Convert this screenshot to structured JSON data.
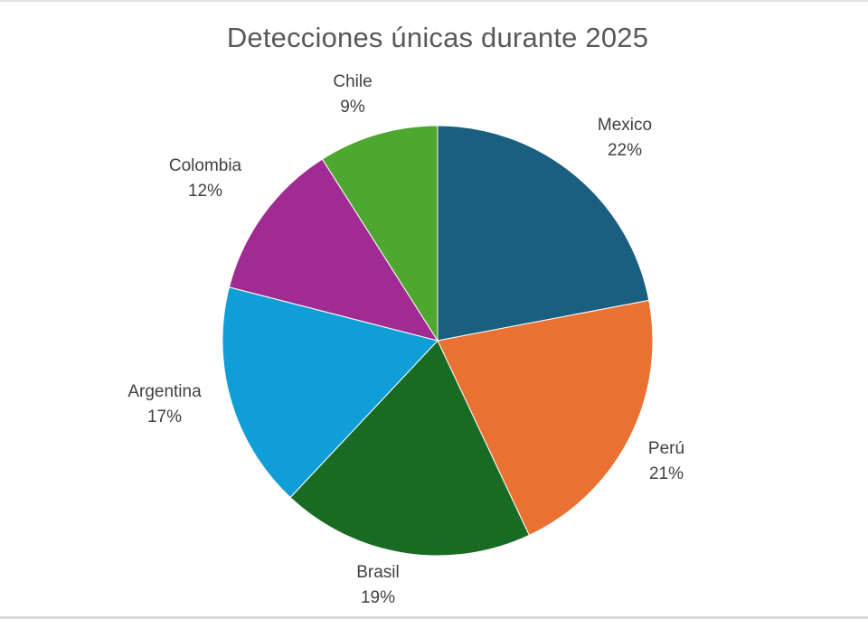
{
  "chart_data": {
    "type": "pie",
    "title": "Detecciones únicas durante 2025",
    "categories": [
      "Mexico",
      "Perú",
      "Brasil",
      "Argentina",
      "Colombia",
      "Chile"
    ],
    "values": [
      22,
      21,
      19,
      17,
      12,
      9
    ],
    "labels": [
      "22%",
      "21%",
      "19%",
      "17%",
      "12%",
      "9%"
    ],
    "colors": [
      "#1A5E80",
      "#E97132",
      "#196B24",
      "#0F9ED5",
      "#A02B93",
      "#4EA72E"
    ],
    "start_angle_deg": 0,
    "direction": "clockwise",
    "legend": "none (data labels with category name and percentage)"
  },
  "slices": [
    {
      "name": "Mexico",
      "pct": "22%"
    },
    {
      "name": "Perú",
      "pct": "21%"
    },
    {
      "name": "Brasil",
      "pct": "19%"
    },
    {
      "name": "Argentina",
      "pct": "17%"
    },
    {
      "name": "Colombia",
      "pct": "12%"
    },
    {
      "name": "Chile",
      "pct": "9%"
    }
  ]
}
